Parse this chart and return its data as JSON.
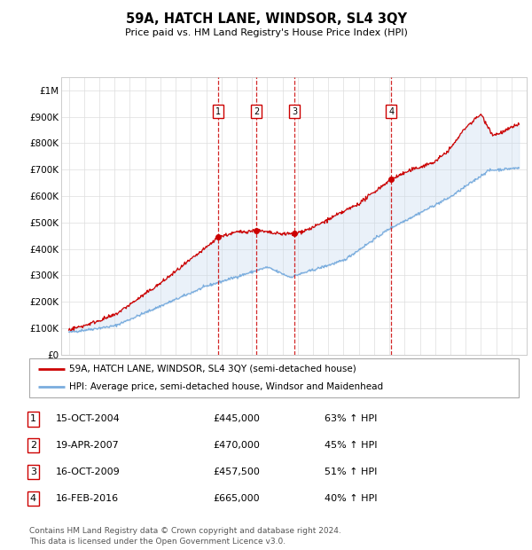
{
  "title": "59A, HATCH LANE, WINDSOR, SL4 3QY",
  "subtitle": "Price paid vs. HM Land Registry's House Price Index (HPI)",
  "ylabel_ticks": [
    "£0",
    "£100K",
    "£200K",
    "£300K",
    "£400K",
    "£500K",
    "£600K",
    "£700K",
    "£800K",
    "£900K",
    "£1M"
  ],
  "y_values": [
    0,
    100000,
    200000,
    300000,
    400000,
    500000,
    600000,
    700000,
    800000,
    900000,
    1000000
  ],
  "ylim": [
    0,
    1050000
  ],
  "sale_dates_num": [
    2004.79,
    2007.3,
    2009.79,
    2016.12
  ],
  "sale_prices": [
    445000,
    470000,
    457500,
    665000
  ],
  "sale_labels": [
    "1",
    "2",
    "3",
    "4"
  ],
  "red_line_color": "#cc0000",
  "blue_line_color": "#7aadde",
  "fill_color": "#c5d9ee",
  "vline_color": "#cc0000",
  "legend_entries": [
    "59A, HATCH LANE, WINDSOR, SL4 3QY (semi-detached house)",
    "HPI: Average price, semi-detached house, Windsor and Maidenhead"
  ],
  "table_rows": [
    [
      "1",
      "15-OCT-2004",
      "£445,000",
      "63% ↑ HPI"
    ],
    [
      "2",
      "19-APR-2007",
      "£470,000",
      "45% ↑ HPI"
    ],
    [
      "3",
      "16-OCT-2009",
      "£457,500",
      "51% ↑ HPI"
    ],
    [
      "4",
      "16-FEB-2016",
      "£665,000",
      "40% ↑ HPI"
    ]
  ],
  "footer": "Contains HM Land Registry data © Crown copyright and database right 2024.\nThis data is licensed under the Open Government Licence v3.0.",
  "grid_color": "#dddddd",
  "xlim_left": 1994.5,
  "xlim_right": 2025.0
}
